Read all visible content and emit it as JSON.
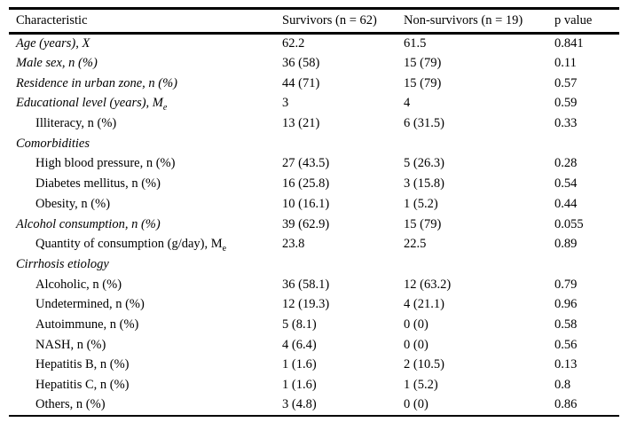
{
  "table": {
    "columns": [
      "Characteristic",
      "Survivors (n = 62)",
      "Non-survivors (n = 19)",
      "p value"
    ],
    "rows": [
      {
        "label": "Age (years), X",
        "italic": true,
        "indent": false,
        "values": [
          "62.2",
          "61.5",
          "0.841"
        ]
      },
      {
        "label": "Male sex, n (%)",
        "italic": true,
        "indent": false,
        "values": [
          "36 (58)",
          "15 (79)",
          "0.11"
        ]
      },
      {
        "label": "Residence in urban zone, n (%)",
        "italic": true,
        "indent": false,
        "values": [
          "44 (71)",
          "15 (79)",
          "0.57"
        ]
      },
      {
        "label": "Educational level (years), M",
        "label_subscript": "e",
        "italic": true,
        "indent": false,
        "values": [
          "3",
          "4",
          "0.59"
        ]
      },
      {
        "label": "Illiteracy, n (%)",
        "italic": false,
        "indent": true,
        "values": [
          "13 (21)",
          "6 (31.5)",
          "0.33"
        ]
      },
      {
        "label": "Comorbidities",
        "italic": true,
        "indent": false,
        "values": [
          "",
          "",
          ""
        ]
      },
      {
        "label": "High blood pressure, n (%)",
        "italic": false,
        "indent": true,
        "values": [
          "27 (43.5)",
          "5 (26.3)",
          "0.28"
        ]
      },
      {
        "label": "Diabetes mellitus, n (%)",
        "italic": false,
        "indent": true,
        "values": [
          "16 (25.8)",
          "3 (15.8)",
          "0.54"
        ]
      },
      {
        "label": "Obesity, n (%)",
        "italic": false,
        "indent": true,
        "values": [
          "10 (16.1)",
          "1 (5.2)",
          "0.44"
        ]
      },
      {
        "label": "Alcohol consumption, n (%)",
        "italic": true,
        "indent": false,
        "values": [
          "39 (62.9)",
          "15 (79)",
          "0.055"
        ]
      },
      {
        "label": "Quantity of consumption (g/day), M",
        "label_subscript": "e",
        "italic": false,
        "indent": true,
        "values": [
          "23.8",
          "22.5",
          "0.89"
        ]
      },
      {
        "label": "Cirrhosis etiology",
        "italic": true,
        "indent": false,
        "values": [
          "",
          "",
          ""
        ]
      },
      {
        "label": "Alcoholic, n (%)",
        "italic": false,
        "indent": true,
        "values": [
          "36 (58.1)",
          "12 (63.2)",
          "0.79"
        ]
      },
      {
        "label": "Undetermined, n (%)",
        "italic": false,
        "indent": true,
        "values": [
          "12 (19.3)",
          "4 (21.1)",
          "0.96"
        ]
      },
      {
        "label": "Autoimmune, n (%)",
        "italic": false,
        "indent": true,
        "values": [
          "5 (8.1)",
          "0 (0)",
          "0.58"
        ]
      },
      {
        "label": "NASH, n (%)",
        "italic": false,
        "indent": true,
        "values": [
          "4 (6.4)",
          "0 (0)",
          "0.56"
        ]
      },
      {
        "label": "Hepatitis B, n (%)",
        "italic": false,
        "indent": true,
        "values": [
          "1 (1.6)",
          "2 (10.5)",
          "0.13"
        ]
      },
      {
        "label": "Hepatitis C, n (%)",
        "italic": false,
        "indent": true,
        "values": [
          "1 (1.6)",
          "1 (5.2)",
          "0.8"
        ]
      },
      {
        "label": "Others, n (%)",
        "italic": false,
        "indent": true,
        "values": [
          "3 (4.8)",
          "0 (0)",
          "0.86"
        ]
      }
    ]
  }
}
